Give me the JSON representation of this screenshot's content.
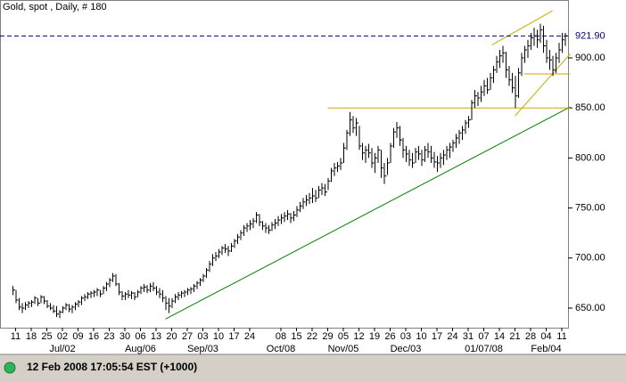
{
  "chart_data": {
    "type": "hlc",
    "title": "Gold, spot , Daily, # 180",
    "status": "12 Feb 2008 17:05:54  EST (+1000)",
    "color": "#000000",
    "xlim": [
      -4,
      178
    ],
    "ylim": [
      630.4,
      953.4
    ],
    "yticks": [
      {
        "value": 650,
        "label": "650.00"
      },
      {
        "value": 700,
        "label": "700.00"
      },
      {
        "value": 750,
        "label": "750.00"
      },
      {
        "value": 800,
        "label": "800.00"
      },
      {
        "value": 850,
        "label": "850.00"
      },
      {
        "value": 900,
        "label": "900.00"
      }
    ],
    "last": {
      "value": 921.9,
      "label": "921.90",
      "color": "#000080"
    },
    "xticks": [
      {
        "value": 1,
        "label": "11"
      },
      {
        "value": 6,
        "label": "18"
      },
      {
        "value": 11,
        "label": "25"
      },
      {
        "value": 16,
        "label": "02"
      },
      {
        "value": 21,
        "label": "09"
      },
      {
        "value": 26,
        "label": "16"
      },
      {
        "value": 31,
        "label": "23"
      },
      {
        "value": 36,
        "label": "30"
      },
      {
        "value": 41,
        "label": "06"
      },
      {
        "value": 46,
        "label": "13"
      },
      {
        "value": 51,
        "label": "20"
      },
      {
        "value": 56,
        "label": "27"
      },
      {
        "value": 61,
        "label": "03"
      },
      {
        "value": 66,
        "label": "10"
      },
      {
        "value": 71,
        "label": "17"
      },
      {
        "value": 76,
        "label": "24"
      },
      {
        "value": 86,
        "label": "08"
      },
      {
        "value": 91,
        "label": "15"
      },
      {
        "value": 96,
        "label": "22"
      },
      {
        "value": 101,
        "label": "29"
      },
      {
        "value": 106,
        "label": "05"
      },
      {
        "value": 111,
        "label": "12"
      },
      {
        "value": 116,
        "label": "19"
      },
      {
        "value": 121,
        "label": "26"
      },
      {
        "value": 126,
        "label": "03"
      },
      {
        "value": 131,
        "label": "10"
      },
      {
        "value": 136,
        "label": "17"
      },
      {
        "value": 141,
        "label": "24"
      },
      {
        "value": 146,
        "label": "31"
      },
      {
        "value": 151,
        "label": "07"
      },
      {
        "value": 156,
        "label": "14"
      },
      {
        "value": 161,
        "label": "21"
      },
      {
        "value": 166,
        "label": "28"
      },
      {
        "value": 171,
        "label": "04"
      },
      {
        "value": 176,
        "label": "11"
      }
    ],
    "month_ticks": [
      {
        "value": 16,
        "label": "Jul/02"
      },
      {
        "value": 41,
        "label": "Aug/06"
      },
      {
        "value": 61,
        "label": "Sep/03"
      },
      {
        "value": 86,
        "label": "Oct/08"
      },
      {
        "value": 106,
        "label": "Nov/05"
      },
      {
        "value": 126,
        "label": "Dec/03"
      },
      {
        "value": 151,
        "label": "01/07/08"
      },
      {
        "value": 171,
        "label": "Feb/04"
      }
    ],
    "lines": [
      {
        "color": "#008000",
        "x": [
          49,
          178.7
        ],
        "values": [
          639,
          851
        ]
      },
      {
        "color": "#c8a800",
        "x": [
          101,
          178.7
        ],
        "values": [
          850,
          850
        ]
      },
      {
        "color": "#c8a800",
        "x": [
          153.6,
          173
        ],
        "values": [
          913,
          947
        ]
      },
      {
        "color": "#c8a800",
        "x": [
          161,
          178.7
        ],
        "values": [
          842,
          904
        ]
      },
      {
        "color": "#c8a800",
        "x": [
          164,
          178.7
        ],
        "values": [
          884,
          884
        ]
      }
    ],
    "bars": [
      [
        672,
        663,
        668
      ],
      [
        668,
        655,
        658
      ],
      [
        660,
        648,
        651
      ],
      [
        655,
        645,
        650
      ],
      [
        656,
        648,
        653
      ],
      [
        657,
        650,
        655
      ],
      [
        658,
        651,
        656
      ],
      [
        662,
        654,
        660
      ],
      [
        660,
        652,
        655
      ],
      [
        663,
        655,
        661
      ],
      [
        662,
        654,
        657
      ],
      [
        658,
        650,
        652
      ],
      [
        655,
        648,
        650
      ],
      [
        653,
        645,
        647
      ],
      [
        652,
        641,
        644
      ],
      [
        648,
        640,
        646
      ],
      [
        652,
        645,
        650
      ],
      [
        655,
        648,
        653
      ],
      [
        654,
        646,
        649
      ],
      [
        653,
        645,
        651
      ],
      [
        656,
        648,
        654
      ],
      [
        658,
        651,
        656
      ],
      [
        662,
        653,
        660
      ],
      [
        664,
        657,
        661
      ],
      [
        666,
        659,
        664
      ],
      [
        667,
        660,
        665
      ],
      [
        668,
        661,
        666
      ],
      [
        670,
        662,
        668
      ],
      [
        668,
        661,
        664
      ],
      [
        672,
        664,
        670
      ],
      [
        676,
        667,
        674
      ],
      [
        680,
        671,
        678
      ],
      [
        685,
        676,
        682
      ],
      [
        684,
        672,
        674
      ],
      [
        675,
        663,
        666
      ],
      [
        667,
        658,
        662
      ],
      [
        666,
        658,
        664
      ],
      [
        668,
        660,
        663
      ],
      [
        667,
        659,
        665
      ],
      [
        666,
        658,
        661
      ],
      [
        668,
        661,
        666
      ],
      [
        672,
        664,
        670
      ],
      [
        674,
        666,
        671
      ],
      [
        673,
        665,
        668
      ],
      [
        675,
        666,
        672
      ],
      [
        676,
        667,
        670
      ],
      [
        672,
        663,
        666
      ],
      [
        670,
        660,
        664
      ],
      [
        668,
        656,
        660
      ],
      [
        662,
        648,
        655
      ],
      [
        660,
        645,
        652
      ],
      [
        660,
        650,
        657
      ],
      [
        664,
        655,
        661
      ],
      [
        666,
        658,
        663
      ],
      [
        667,
        660,
        665
      ],
      [
        668,
        661,
        666
      ],
      [
        670,
        663,
        668
      ],
      [
        671,
        664,
        669
      ],
      [
        674,
        666,
        672
      ],
      [
        677,
        669,
        675
      ],
      [
        680,
        672,
        678
      ],
      [
        684,
        676,
        682
      ],
      [
        690,
        680,
        688
      ],
      [
        697,
        686,
        694
      ],
      [
        704,
        692,
        700
      ],
      [
        706,
        697,
        702
      ],
      [
        709,
        700,
        706
      ],
      [
        712,
        703,
        710
      ],
      [
        714,
        705,
        709
      ],
      [
        712,
        702,
        707
      ],
      [
        715,
        706,
        712
      ],
      [
        719,
        710,
        717
      ],
      [
        724,
        714,
        721
      ],
      [
        728,
        718,
        725
      ],
      [
        733,
        722,
        730
      ],
      [
        735,
        726,
        732
      ],
      [
        738,
        728,
        734
      ],
      [
        740,
        730,
        737
      ],
      [
        746,
        735,
        743
      ],
      [
        744,
        732,
        736
      ],
      [
        737,
        728,
        732
      ],
      [
        735,
        725,
        730
      ],
      [
        733,
        724,
        728
      ],
      [
        736,
        727,
        733
      ],
      [
        739,
        729,
        735
      ],
      [
        742,
        732,
        738
      ],
      [
        744,
        734,
        740
      ],
      [
        746,
        736,
        742
      ],
      [
        748,
        738,
        744
      ],
      [
        745,
        735,
        740
      ],
      [
        747,
        737,
        743
      ],
      [
        752,
        741,
        748
      ],
      [
        756,
        746,
        752
      ],
      [
        760,
        749,
        756
      ],
      [
        763,
        752,
        758
      ],
      [
        765,
        754,
        760
      ],
      [
        770,
        755,
        762
      ],
      [
        768,
        756,
        760
      ],
      [
        772,
        760,
        768
      ],
      [
        775,
        763,
        770
      ],
      [
        774,
        762,
        766
      ],
      [
        780,
        768,
        777
      ],
      [
        790,
        776,
        787
      ],
      [
        795,
        782,
        790
      ],
      [
        796,
        786,
        792
      ],
      [
        800,
        788,
        795
      ],
      [
        815,
        795,
        810
      ],
      [
        828,
        808,
        825
      ],
      [
        846,
        822,
        838
      ],
      [
        842,
        825,
        830
      ],
      [
        840,
        822,
        835
      ],
      [
        832,
        808,
        812
      ],
      [
        815,
        798,
        805
      ],
      [
        812,
        795,
        808
      ],
      [
        814,
        800,
        805
      ],
      [
        810,
        790,
        795
      ],
      [
        805,
        785,
        800
      ],
      [
        812,
        795,
        808
      ],
      [
        808,
        780,
        790
      ],
      [
        795,
        774,
        782
      ],
      [
        800,
        783,
        795
      ],
      [
        815,
        795,
        812
      ],
      [
        830,
        810,
        826
      ],
      [
        836,
        820,
        830
      ],
      [
        832,
        812,
        818
      ],
      [
        820,
        800,
        808
      ],
      [
        812,
        796,
        804
      ],
      [
        808,
        792,
        798
      ],
      [
        805,
        790,
        795
      ],
      [
        810,
        795,
        806
      ],
      [
        812,
        798,
        804
      ],
      [
        808,
        792,
        798
      ],
      [
        812,
        796,
        808
      ],
      [
        815,
        800,
        806
      ],
      [
        812,
        795,
        800
      ],
      [
        806,
        790,
        796
      ],
      [
        802,
        786,
        795
      ],
      [
        805,
        790,
        800
      ],
      [
        808,
        793,
        803
      ],
      [
        812,
        798,
        808
      ],
      [
        815,
        800,
        811
      ],
      [
        818,
        806,
        815
      ],
      [
        824,
        810,
        820
      ],
      [
        828,
        814,
        825
      ],
      [
        832,
        818,
        828
      ],
      [
        838,
        824,
        835
      ],
      [
        842,
        830,
        838
      ],
      [
        858,
        838,
        855
      ],
      [
        868,
        850,
        862
      ],
      [
        866,
        852,
        860
      ],
      [
        872,
        856,
        866
      ],
      [
        878,
        862,
        872
      ],
      [
        880,
        864,
        868
      ],
      [
        885,
        868,
        880
      ],
      [
        892,
        875,
        888
      ],
      [
        902,
        885,
        896
      ],
      [
        908,
        890,
        902
      ],
      [
        912,
        895,
        905
      ],
      [
        906,
        880,
        888
      ],
      [
        892,
        872,
        878
      ],
      [
        885,
        865,
        870
      ],
      [
        882,
        850,
        862
      ],
      [
        890,
        860,
        885
      ],
      [
        905,
        882,
        900
      ],
      [
        912,
        895,
        908
      ],
      [
        918,
        900,
        912
      ],
      [
        925,
        908,
        920
      ],
      [
        930,
        912,
        922
      ],
      [
        928,
        910,
        918
      ],
      [
        934,
        915,
        928
      ],
      [
        932,
        905,
        912
      ],
      [
        918,
        895,
        900
      ],
      [
        908,
        888,
        898
      ],
      [
        902,
        882,
        888
      ],
      [
        905,
        885,
        900
      ],
      [
        915,
        895,
        908
      ],
      [
        925,
        905,
        918
      ],
      [
        925,
        912,
        922
      ]
    ]
  }
}
